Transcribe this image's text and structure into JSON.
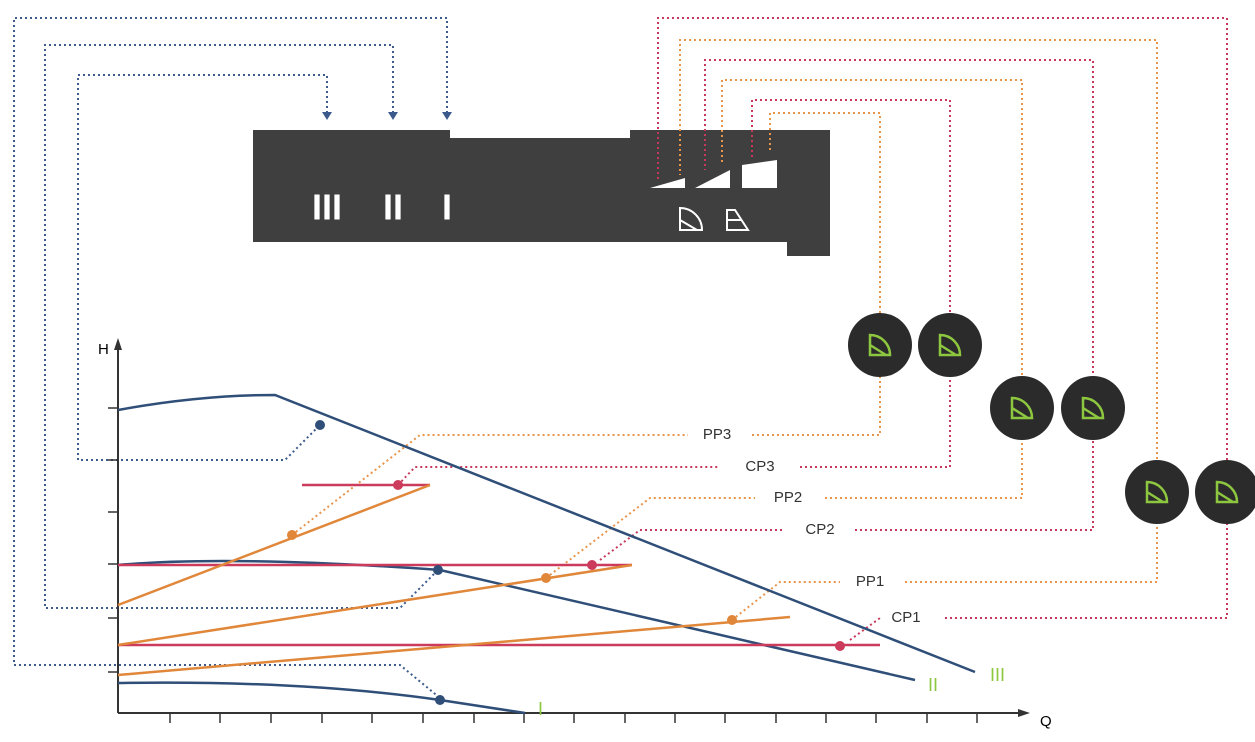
{
  "axes": {
    "y_label": "H",
    "x_label": "Q"
  },
  "panel": {
    "speed_labels": [
      "III",
      "II",
      "I"
    ]
  },
  "curves": [
    {
      "label": "I"
    },
    {
      "label": "II"
    },
    {
      "label": "III"
    }
  ],
  "modes": [
    {
      "label": "PP3"
    },
    {
      "label": "CP3"
    },
    {
      "label": "PP2"
    },
    {
      "label": "CP2"
    },
    {
      "label": "PP1"
    },
    {
      "label": "CP1"
    }
  ]
}
